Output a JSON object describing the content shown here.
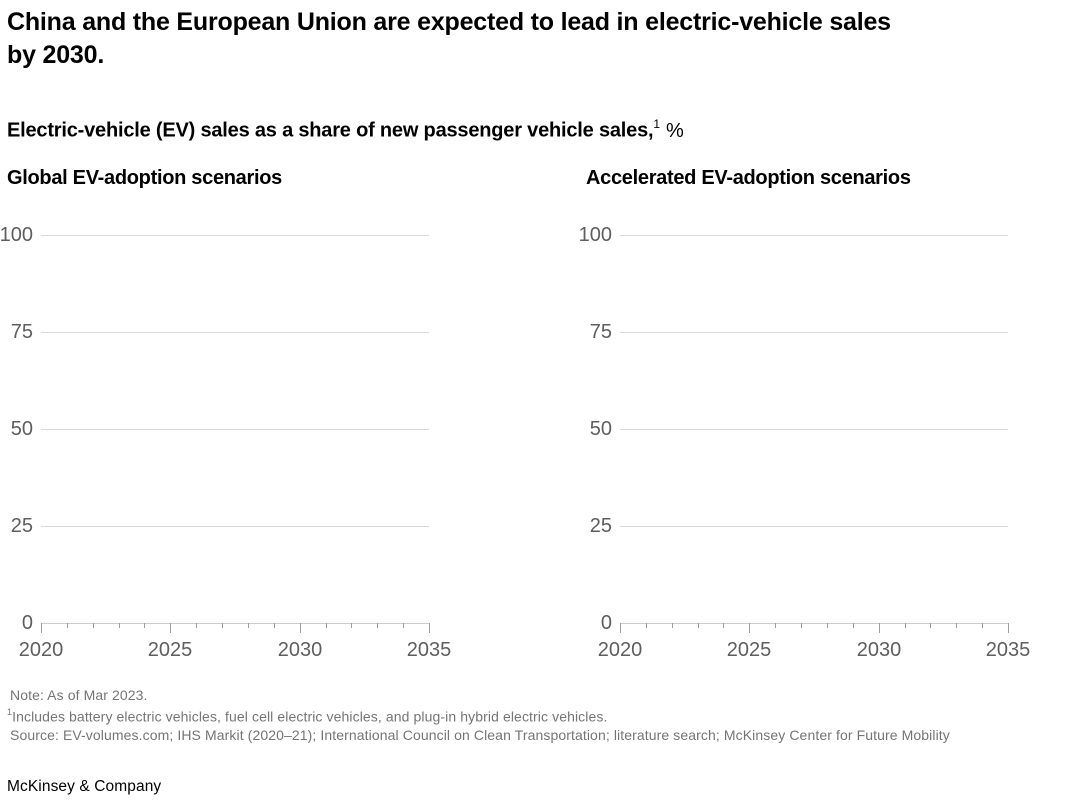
{
  "page": {
    "title_lines": [
      "China and the European Union are expected to lead in electric-vehicle sales",
      "by 2030."
    ],
    "subtitle": {
      "text": "Electric-vehicle (EV) sales as a share of new passenger vehicle sales,",
      "superscript": "1",
      "unit": "%"
    }
  },
  "chart_data": [
    {
      "type": "line",
      "title": "Global EV-adoption scenarios",
      "xlabel": "",
      "ylabel": "",
      "x_range": [
        2020,
        2035
      ],
      "x_major_ticks": [
        2020,
        2025,
        2030,
        2035
      ],
      "x_minor_tick_step_years": 1,
      "y_ticks": [
        0,
        25,
        50,
        75,
        100
      ],
      "ylim": [
        0,
        100
      ],
      "grid": true,
      "legend": "none",
      "series": [],
      "note": "plot area is empty in the screenshot; no data lines are drawn"
    },
    {
      "type": "line",
      "title": "Accelerated EV-adoption scenarios",
      "xlabel": "",
      "ylabel": "",
      "x_range": [
        2020,
        2035
      ],
      "x_major_ticks": [
        2020,
        2025,
        2030,
        2035
      ],
      "x_minor_tick_step_years": 1,
      "y_ticks": [
        0,
        25,
        50,
        75,
        100
      ],
      "ylim": [
        0,
        100
      ],
      "grid": true,
      "legend": "none",
      "series": [],
      "note": "plot area is empty in the screenshot; no data lines are drawn"
    }
  ],
  "footnotes": {
    "note": "Note: As of Mar 2023.",
    "footnote_superscript": "1",
    "footnote_text": "Includes battery electric vehicles, fuel cell electric vehicles, and plug-in hybrid electric vehicles.",
    "source": "Source: EV-volumes.com; IHS Markit (2020–21); International Council on Clean Transportation; literature search; McKinsey Center for Future Mobility"
  },
  "branding": {
    "wordmark": "McKinsey & Company"
  },
  "colors": {
    "text": "#000000",
    "axis_label": "#5e5e5e",
    "gridline": "#d9d9d9",
    "axis_line": "#cccccc",
    "tick": "#9e9e9e",
    "footnote": "#757575",
    "background": "#ffffff"
  }
}
